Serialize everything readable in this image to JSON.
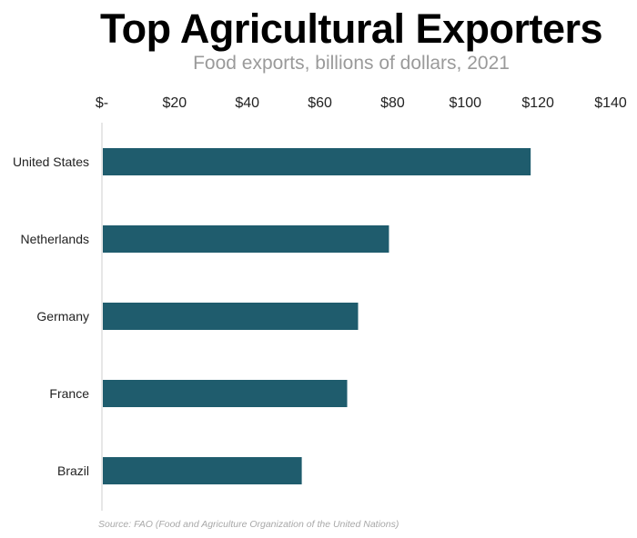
{
  "chart_data": {
    "type": "bar",
    "orientation": "horizontal",
    "title": "Top Agricultural Exporters",
    "subtitle": "Food exports, billions of dollars, 2021",
    "categories": [
      "United States",
      "Netherlands",
      "Germany",
      "France",
      "Brazil"
    ],
    "values": [
      118,
      79,
      70.5,
      67.5,
      55
    ],
    "xlim": [
      0,
      140
    ],
    "x_ticks": [
      0,
      20,
      40,
      60,
      80,
      100,
      120,
      140
    ],
    "x_tick_labels": [
      "$-",
      "$20",
      "$40",
      "$60",
      "$80",
      "$100",
      "$120",
      "$140"
    ],
    "x_axis_position": "top",
    "grid": false,
    "legend": "none",
    "bar_color": "#1f5c6d",
    "source": "Source: FAO (Food and Agriculture Organization of the United Nations)"
  }
}
